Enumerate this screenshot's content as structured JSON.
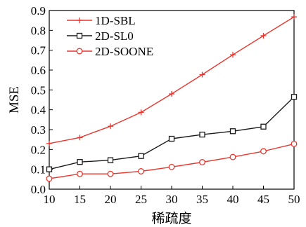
{
  "chart_data": {
    "type": "line",
    "title": "",
    "xlabel": "稀疏度",
    "ylabel": "MSE",
    "x": [
      10,
      15,
      20,
      25,
      30,
      35,
      40,
      45,
      50
    ],
    "x_ticks": [
      "10",
      "15",
      "20",
      "25",
      "30",
      "35",
      "40",
      "45",
      "50"
    ],
    "y_ticks": [
      "0.0",
      "0.1",
      "0.2",
      "0.3",
      "0.4",
      "0.5",
      "0.6",
      "0.7",
      "0.8",
      "0.9"
    ],
    "xlim": [
      10,
      50
    ],
    "ylim": [
      0,
      0.9
    ],
    "grid": false,
    "legend_position": "top-left",
    "series": [
      {
        "name": "1D-SBL",
        "color": "#e8372f",
        "marker": "plus",
        "values": [
          0.23,
          0.26,
          0.317,
          0.387,
          0.48,
          0.577,
          0.677,
          0.773,
          0.868
        ]
      },
      {
        "name": "2D-SL0",
        "color": "#1a1a1a",
        "marker": "square",
        "values": [
          0.1,
          0.137,
          0.146,
          0.167,
          0.254,
          0.275,
          0.292,
          0.315,
          0.465
        ]
      },
      {
        "name": "2D-SOONE",
        "color": "#e8372f",
        "marker": "circle",
        "values": [
          0.053,
          0.077,
          0.077,
          0.09,
          0.112,
          0.136,
          0.162,
          0.191,
          0.228
        ]
      }
    ]
  }
}
